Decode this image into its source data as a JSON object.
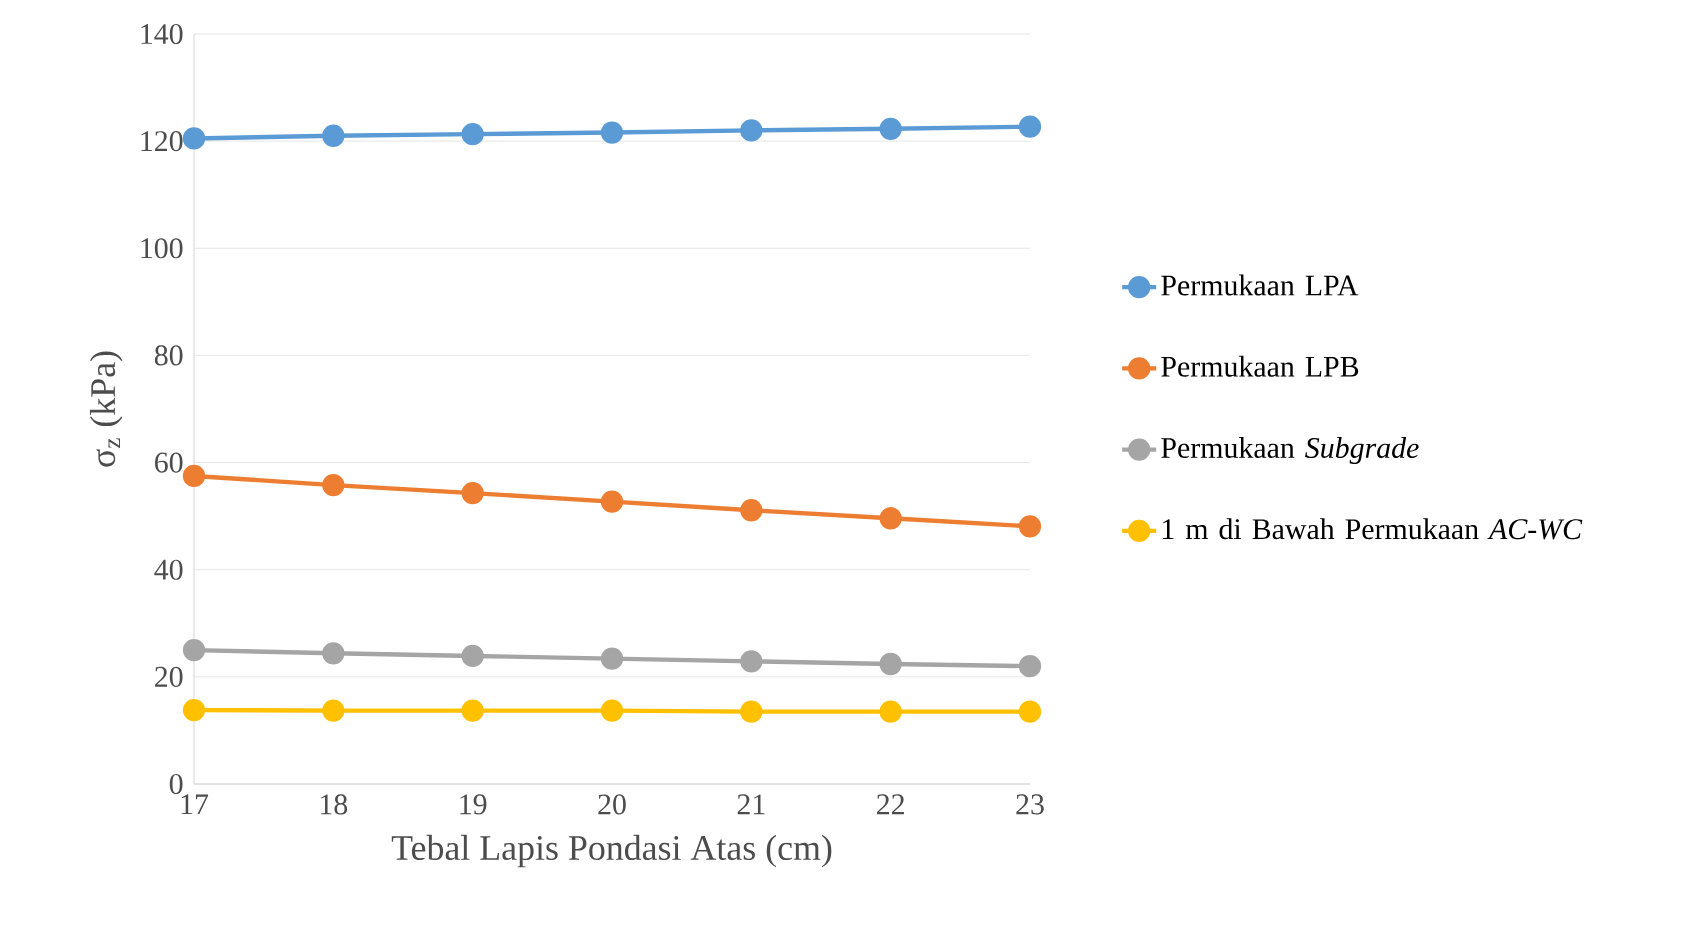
{
  "chart_data": {
    "type": "line",
    "xlabel": "Tebal Lapis Pondasi Atas (cm)",
    "ylabel": "σ$_{z}$ (kPa)",
    "x": [
      17,
      18,
      19,
      20,
      21,
      22,
      23
    ],
    "series": [
      {
        "name": "Permukaan LPA",
        "color": "#5b9bd5",
        "values": [
          120.5,
          121,
          121.3,
          121.6,
          122,
          122.3,
          122.7
        ]
      },
      {
        "name": "Permukaan LPB",
        "color": "#ed7d31",
        "values": [
          57.5,
          55.8,
          54.3,
          52.7,
          51.1,
          49.6,
          48.1
        ]
      },
      {
        "name": "Permukaan *Subgrade*",
        "color": "#a5a5a5",
        "values": [
          25,
          24.4,
          23.9,
          23.4,
          22.9,
          22.4,
          22
        ]
      },
      {
        "name": "1 m di Bawah Permukaan *AC-WC*",
        "color": "#ffc000",
        "values": [
          13.8,
          13.7,
          13.7,
          13.7,
          13.5,
          13.5,
          13.5
        ]
      }
    ],
    "xlim": [
      17,
      23
    ],
    "xticks": [
      17,
      18,
      19,
      20,
      21,
      22,
      23
    ],
    "ylim": [
      0,
      140
    ],
    "yticks": [
      0,
      20,
      40,
      60,
      80,
      100,
      120,
      140
    ],
    "grid": "y",
    "legend": "right",
    "marker": "circle",
    "line_style": "solid"
  }
}
